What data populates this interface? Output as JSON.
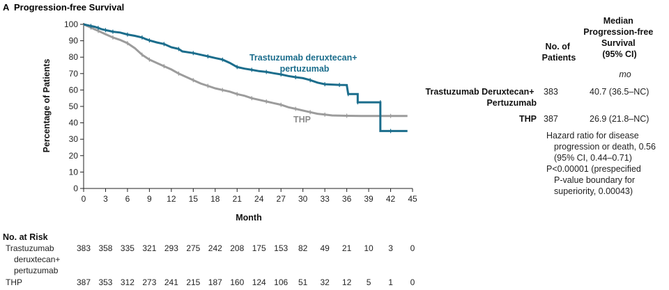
{
  "panel": {
    "letter": "A",
    "title": "Progression-free Survival"
  },
  "chart_data": {
    "type": "line",
    "title": "Progression-free Survival",
    "xlabel": "Month",
    "ylabel": "Percentage of Patients",
    "xlim": [
      0,
      45
    ],
    "ylim": [
      0,
      100
    ],
    "xticks": [
      0,
      3,
      6,
      9,
      12,
      15,
      18,
      21,
      24,
      27,
      30,
      33,
      36,
      39,
      42,
      45
    ],
    "yticks": [
      0,
      10,
      20,
      30,
      40,
      50,
      60,
      70,
      80,
      90,
      100
    ],
    "series": [
      {
        "name": "Trastuzumab deruxtecan+ pertuzumab",
        "label_lines": [
          "Trastuzumab deruxtecan+",
          "pertuzumab"
        ],
        "color": "#1b6d8c",
        "points": [
          [
            0,
            100
          ],
          [
            0.5,
            99.5
          ],
          [
            1,
            99
          ],
          [
            1.5,
            98.5
          ],
          [
            2,
            97.8
          ],
          [
            2.5,
            97
          ],
          [
            3,
            96.5
          ],
          [
            3.5,
            96
          ],
          [
            4,
            95.5
          ],
          [
            5,
            95
          ],
          [
            6,
            93.8
          ],
          [
            7,
            93
          ],
          [
            8,
            92
          ],
          [
            8.5,
            91
          ],
          [
            9,
            90.2
          ],
          [
            10,
            89
          ],
          [
            11,
            88
          ],
          [
            12,
            86
          ],
          [
            13,
            85
          ],
          [
            13.5,
            83.5
          ],
          [
            15,
            82.5
          ],
          [
            16,
            81.5
          ],
          [
            17,
            80.5
          ],
          [
            18,
            79.5
          ],
          [
            19,
            78.5
          ],
          [
            20,
            76.5
          ],
          [
            21,
            74
          ],
          [
            22,
            73
          ],
          [
            23,
            72.3
          ],
          [
            24,
            71.5
          ],
          [
            25,
            71
          ],
          [
            26,
            70.2
          ],
          [
            27,
            69.5
          ],
          [
            28,
            68.5
          ],
          [
            29,
            67.8
          ],
          [
            30,
            67.2
          ],
          [
            31,
            66
          ],
          [
            32,
            64.5
          ],
          [
            33,
            63.5
          ],
          [
            34,
            63.3
          ],
          [
            35,
            63.1
          ],
          [
            36,
            63
          ],
          [
            36.2,
            57.5
          ],
          [
            37.5,
            57.5
          ],
          [
            37.5,
            52.5
          ],
          [
            39,
            52.5
          ],
          [
            40.6,
            52.5
          ],
          [
            40.6,
            35
          ],
          [
            42,
            35
          ],
          [
            44.3,
            35
          ]
        ]
      },
      {
        "name": "THP",
        "label_lines": [
          "THP"
        ],
        "color": "#9c9c9c",
        "points": [
          [
            0,
            100
          ],
          [
            0.5,
            99
          ],
          [
            1,
            98
          ],
          [
            1.5,
            97
          ],
          [
            2,
            96
          ],
          [
            3,
            94
          ],
          [
            4,
            92
          ],
          [
            5,
            90.5
          ],
          [
            6,
            88.5
          ],
          [
            7,
            85.5
          ],
          [
            8,
            81.5
          ],
          [
            8.5,
            80
          ],
          [
            9,
            78.5
          ],
          [
            10,
            76.5
          ],
          [
            11,
            74.5
          ],
          [
            12,
            72.5
          ],
          [
            13,
            70
          ],
          [
            14,
            68
          ],
          [
            15,
            66
          ],
          [
            16,
            64
          ],
          [
            17,
            62.5
          ],
          [
            18,
            61
          ],
          [
            19,
            60
          ],
          [
            20,
            59
          ],
          [
            21,
            57.5
          ],
          [
            22,
            56.5
          ],
          [
            23,
            55
          ],
          [
            24,
            54
          ],
          [
            25,
            53
          ],
          [
            26,
            52
          ],
          [
            27,
            51
          ],
          [
            28,
            49.5
          ],
          [
            29,
            48.5
          ],
          [
            30,
            47.5
          ],
          [
            31,
            46.5
          ],
          [
            32,
            45.5
          ],
          [
            33,
            45
          ],
          [
            34,
            44.5
          ],
          [
            36,
            44.3
          ],
          [
            38,
            44.2
          ],
          [
            42,
            44.2
          ],
          [
            44.3,
            44.2
          ]
        ]
      }
    ]
  },
  "stats_table": {
    "col_patients": [
      "No. of",
      "Patients"
    ],
    "col_median": [
      "Median",
      "Progression-free",
      "Survival",
      "(95% CI)"
    ],
    "unit": "mo",
    "rows": [
      {
        "label_lines": [
          "Trastuzumab Deruxtecan+",
          "Pertuzumab"
        ],
        "patients": "383",
        "median": "40.7 (36.5–NC)"
      },
      {
        "label_lines": [
          "THP"
        ],
        "patients": "387",
        "median": "26.9 (21.8–NC)"
      }
    ],
    "hazard_lines": [
      "Hazard ratio for disease",
      "progression or death, 0.56",
      "(95% CI, 0.44–0.71)"
    ],
    "p_lines": [
      "P<0.00001 (prespecified",
      "P-value boundary for",
      "superiority, 0.00043)"
    ]
  },
  "risk_table": {
    "title": "No. at Risk",
    "rows": [
      {
        "label_lines": [
          "Trastuzumab",
          "deruxtecan+",
          "pertuzumab"
        ],
        "values": [
          "383",
          "358",
          "335",
          "321",
          "293",
          "275",
          "242",
          "208",
          "175",
          "153",
          "82",
          "49",
          "21",
          "10",
          "3",
          "0"
        ]
      },
      {
        "label_lines": [
          "THP"
        ],
        "values": [
          "387",
          "353",
          "312",
          "273",
          "241",
          "215",
          "187",
          "160",
          "124",
          "106",
          "51",
          "32",
          "12",
          "5",
          "1",
          "0"
        ]
      }
    ]
  }
}
